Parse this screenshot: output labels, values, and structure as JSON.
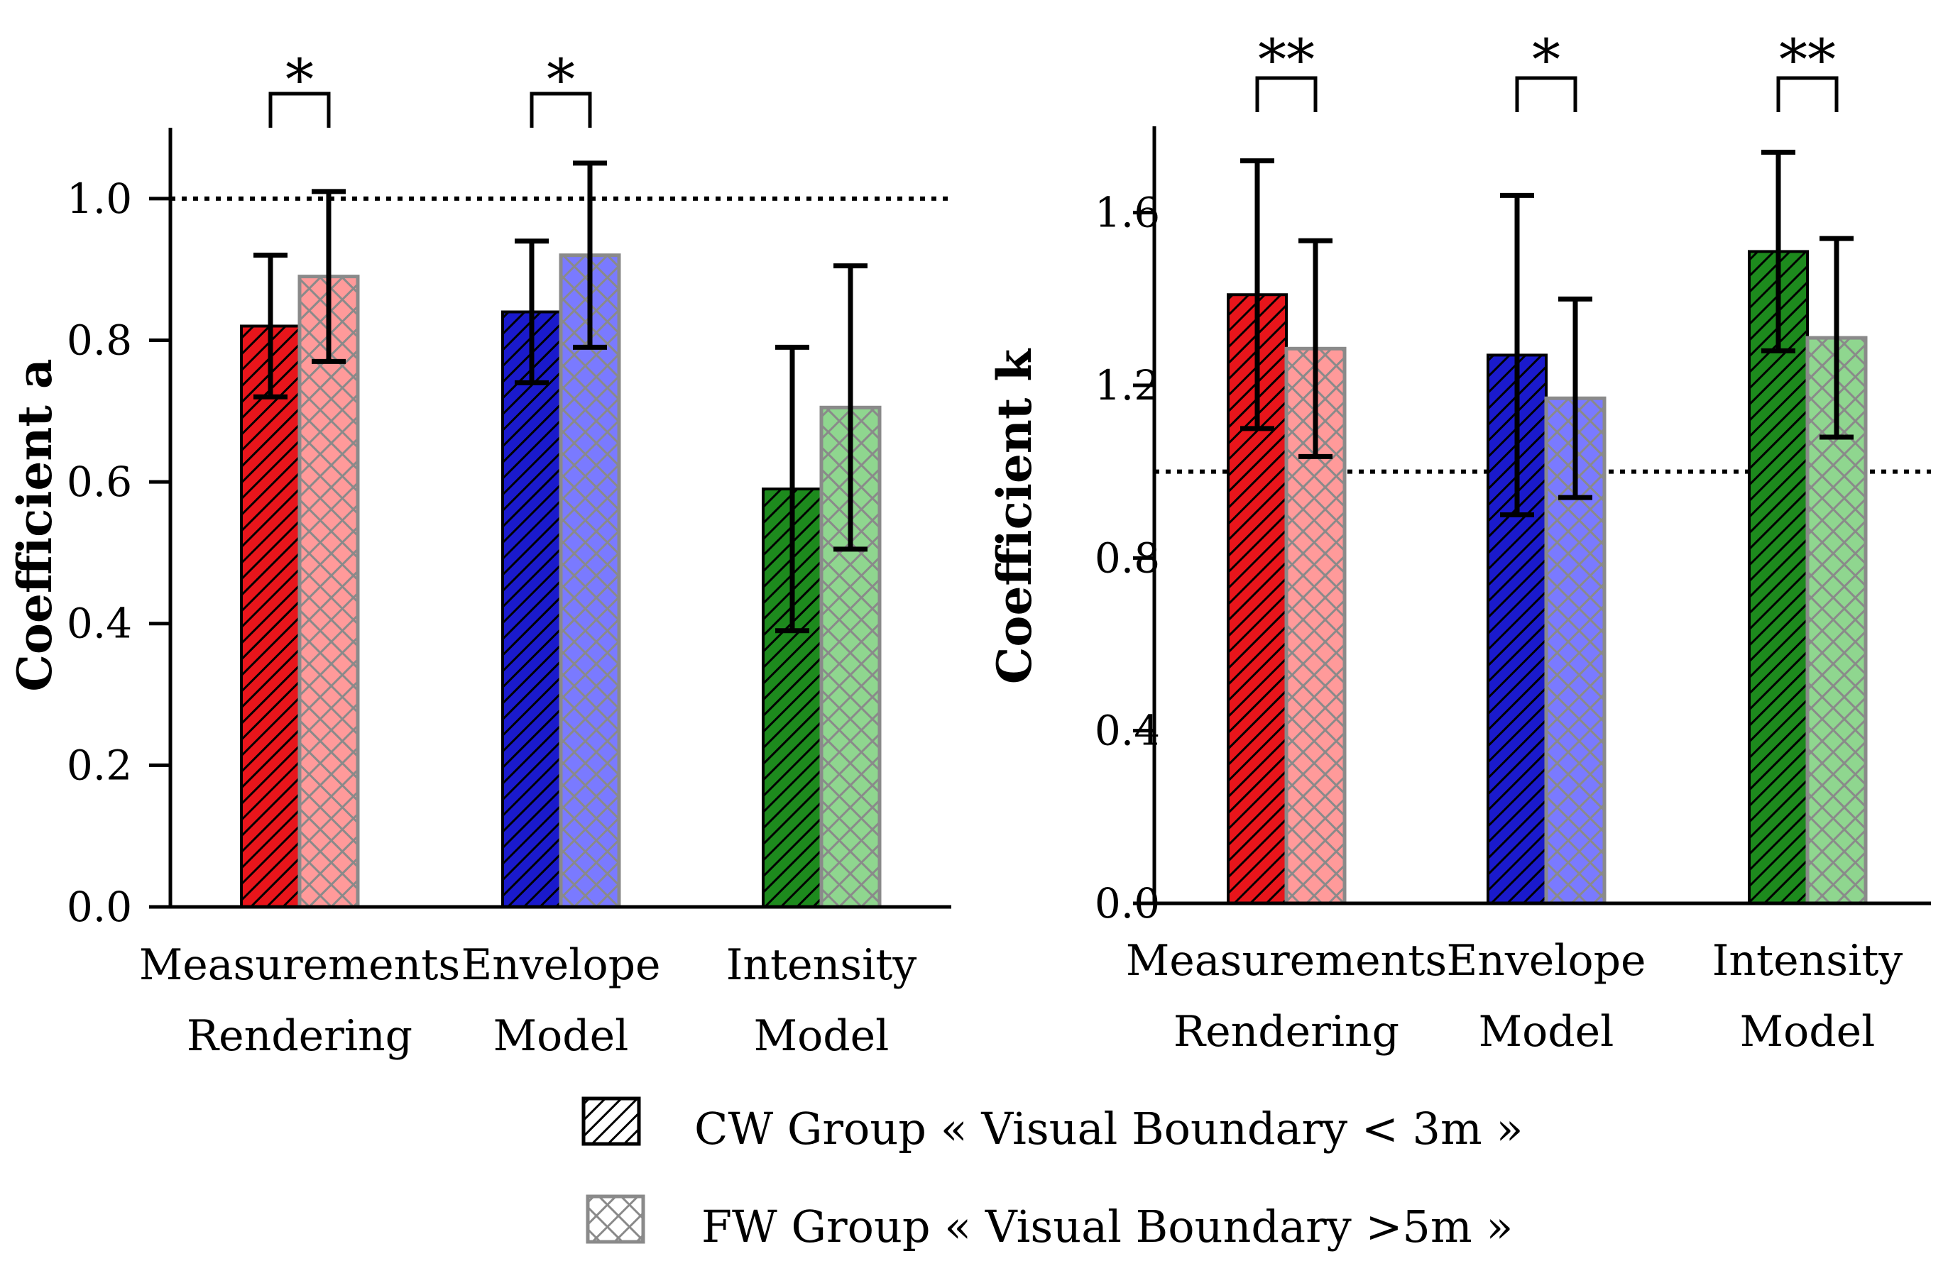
{
  "chart_data": [
    {
      "type": "bar",
      "ylabel": "Coefficient a",
      "ylim": [
        0,
        1.1
      ],
      "yticks": [
        "0.0",
        "0.2",
        "0.4",
        "0.6",
        "0.8",
        "1.0"
      ],
      "ytick_values": [
        0.0,
        0.2,
        0.4,
        0.6,
        0.8,
        1.0
      ],
      "reference_line": 1.0,
      "categories": [
        {
          "line1": "Measurements",
          "line2": "Rendering"
        },
        {
          "line1": "Envelope",
          "line2": "Model"
        },
        {
          "line1": "Intensity",
          "line2": "Model"
        }
      ],
      "category_colors": [
        "#e8151b",
        "#1a1acc",
        "#1d8a1d"
      ],
      "category_light_colors": [
        "#ff9a9a",
        "#7a7aff",
        "#8fd68f"
      ],
      "series": [
        {
          "name": "CW Group",
          "values": [
            0.82,
            0.84,
            0.59
          ],
          "error": [
            0.1,
            0.1,
            0.2
          ]
        },
        {
          "name": "FW Group",
          "values": [
            0.89,
            0.92,
            0.705
          ],
          "error": [
            0.12,
            0.13,
            0.2
          ]
        }
      ],
      "significance": [
        "*",
        "*",
        ""
      ]
    },
    {
      "type": "bar",
      "ylabel": "Coefficient k",
      "ylim": [
        0,
        1.8
      ],
      "yticks": [
        "0.0",
        "0.4",
        "0.8",
        "1.2",
        "1.6"
      ],
      "ytick_values": [
        0.0,
        0.4,
        0.8,
        1.2,
        1.6
      ],
      "reference_line": 1.0,
      "categories": [
        {
          "line1": "Measurements",
          "line2": "Rendering"
        },
        {
          "line1": "Envelope",
          "line2": "Model"
        },
        {
          "line1": "Intensity",
          "line2": "Model"
        }
      ],
      "category_colors": [
        "#e8151b",
        "#1a1acc",
        "#1d8a1d"
      ],
      "category_light_colors": [
        "#ff9a9a",
        "#7a7aff",
        "#8fd68f"
      ],
      "series": [
        {
          "name": "CW Group",
          "values": [
            1.41,
            1.27,
            1.51
          ],
          "error": [
            0.31,
            0.37,
            0.23
          ]
        },
        {
          "name": "FW Group",
          "values": [
            1.285,
            1.17,
            1.31
          ],
          "error": [
            0.25,
            0.23,
            0.23
          ]
        }
      ],
      "significance": [
        "**",
        "*",
        "**"
      ]
    }
  ],
  "legend": [
    {
      "label": "CW Group «  Visual Boundary < 3m  »",
      "pattern": "hatch"
    },
    {
      "label": "FW Group  «  Visual Boundary >5m  »",
      "pattern": "crosshatch"
    }
  ]
}
